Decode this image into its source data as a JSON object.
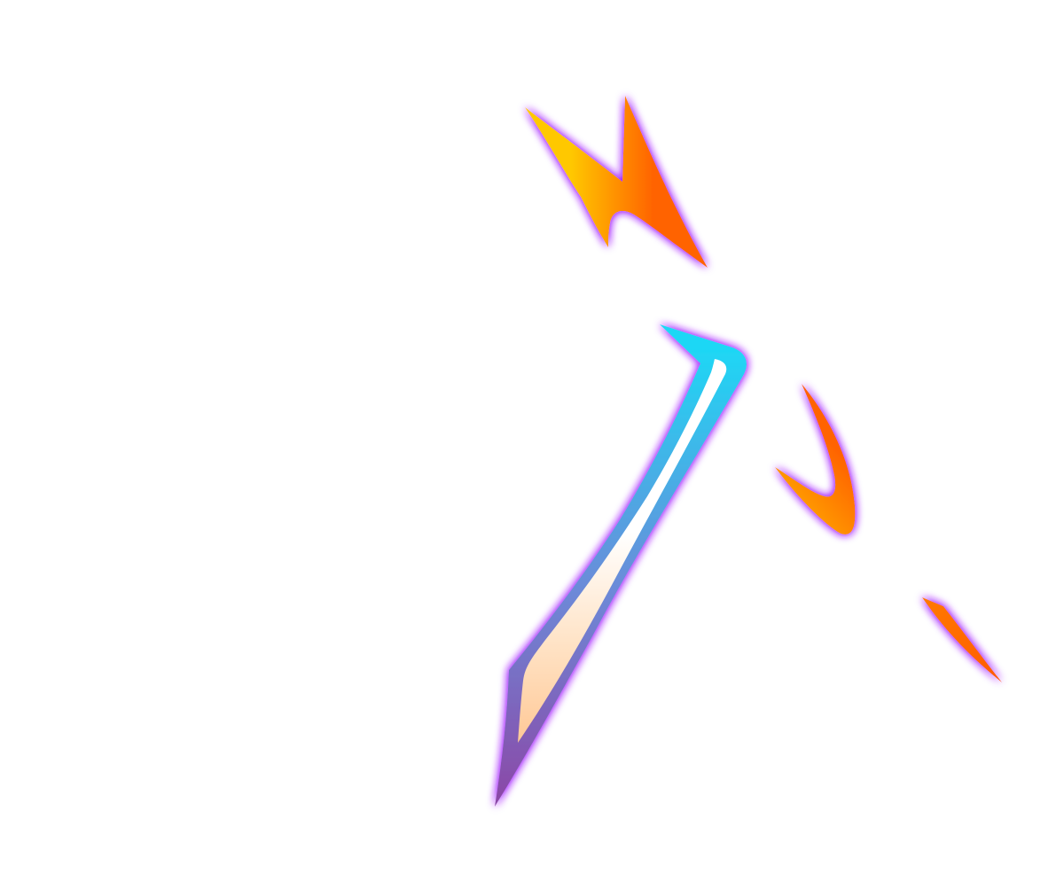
{
  "colors": {
    "background": "#ffffff",
    "glow": "#a020ff",
    "flame_yellow": "#ffc800",
    "flame_orange": "#ff6400",
    "blade_cyan": "#1ed7f5",
    "blade_purple": "#8c46a5",
    "blade_highlight": "#ffffff",
    "blade_peach": "#ffc896"
  },
  "icons": [
    "zigzag-flame-icon",
    "blade-stroke-icon",
    "hook-flame-icon",
    "streak-flame-icon"
  ]
}
